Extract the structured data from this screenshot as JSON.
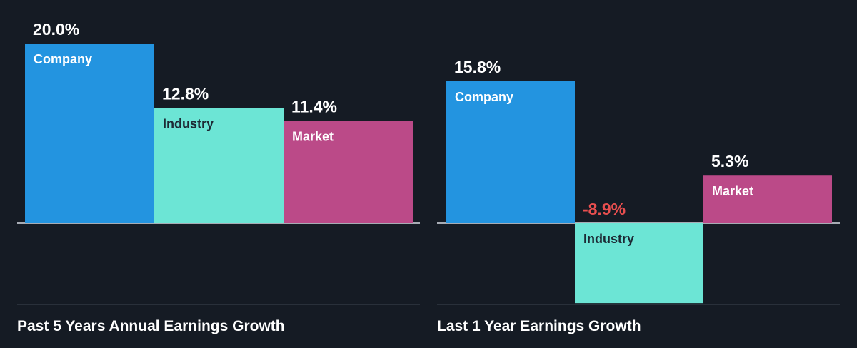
{
  "colors": {
    "background": "#151b24",
    "company": "#2394e0",
    "industry": "#6ce5d5",
    "market": "#bb4a88",
    "positive_text": "#ffffff",
    "negative_text": "#e84f4f",
    "axis": "#d8dde3",
    "divider": "#3d4550"
  },
  "chart_data": [
    {
      "type": "bar",
      "title": "Past 5 Years Annual Earnings Growth",
      "unit": "%",
      "ylim": [
        -10,
        20
      ],
      "categories": [
        "Company",
        "Industry",
        "Market"
      ],
      "values": [
        20.0,
        12.8,
        11.4
      ],
      "value_labels": [
        "20.0%",
        "12.8%",
        "11.4%"
      ],
      "grid": false,
      "legend": "none"
    },
    {
      "type": "bar",
      "title": "Last 1 Year Earnings Growth",
      "unit": "%",
      "ylim": [
        -10,
        20
      ],
      "categories": [
        "Company",
        "Industry",
        "Market"
      ],
      "values": [
        15.8,
        -8.9,
        5.3
      ],
      "value_labels": [
        "15.8%",
        "-8.9%",
        "5.3%"
      ],
      "grid": false,
      "legend": "none"
    }
  ]
}
